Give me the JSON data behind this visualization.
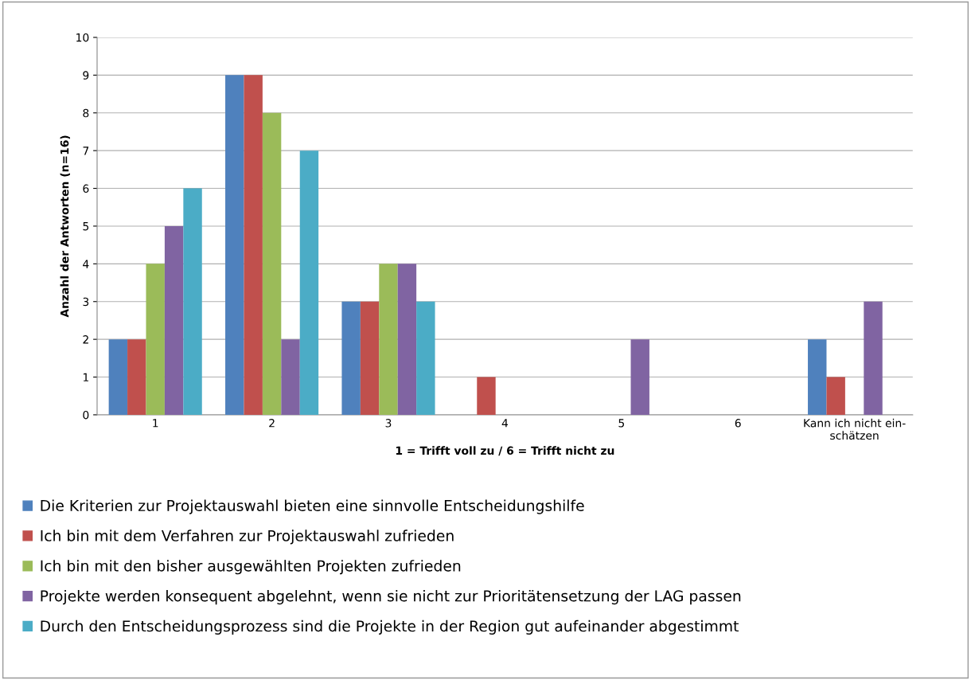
{
  "chart_data": {
    "type": "bar",
    "xlabel": "1 = Trifft voll zu / 6 = Trifft nicht zu",
    "ylabel": "Anzahl der Antworten (n=16)",
    "categories": [
      "1",
      "2",
      "3",
      "4",
      "5",
      "6",
      "Kann ich nicht ein-\nschätzen"
    ],
    "series": [
      {
        "name": "Die Kriterien zur Projektauswahl bieten eine sinnvolle Entscheidungshilfe",
        "color": "#4f81bd",
        "values": [
          2,
          9,
          3,
          0,
          0,
          0,
          2
        ]
      },
      {
        "name": "Ich bin mit dem Verfahren zur Projektauswahl zufrieden",
        "color": "#c0504d",
        "values": [
          2,
          9,
          3,
          1,
          0,
          0,
          1
        ]
      },
      {
        "name": "Ich bin mit den bisher ausgewählten Projekten zufrieden",
        "color": "#9bbb59",
        "values": [
          4,
          8,
          4,
          0,
          0,
          0,
          0
        ]
      },
      {
        "name": "Projekte werden konsequent abgelehnt, wenn sie nicht zur Prioritätensetzung der LAG passen",
        "color": "#8064a2",
        "values": [
          5,
          2,
          4,
          0,
          2,
          0,
          3
        ]
      },
      {
        "name": "Durch den Entscheidungsprozess sind die Projekte in der Region gut aufeinander abgestimmt",
        "color": "#4bacc6",
        "values": [
          6,
          7,
          3,
          0,
          0,
          0,
          0
        ]
      }
    ],
    "ylim": [
      0,
      10
    ],
    "yticks": [
      0,
      1,
      2,
      3,
      4,
      5,
      6,
      7,
      8,
      9,
      10
    ],
    "grid": "y",
    "legend": "bottom"
  }
}
